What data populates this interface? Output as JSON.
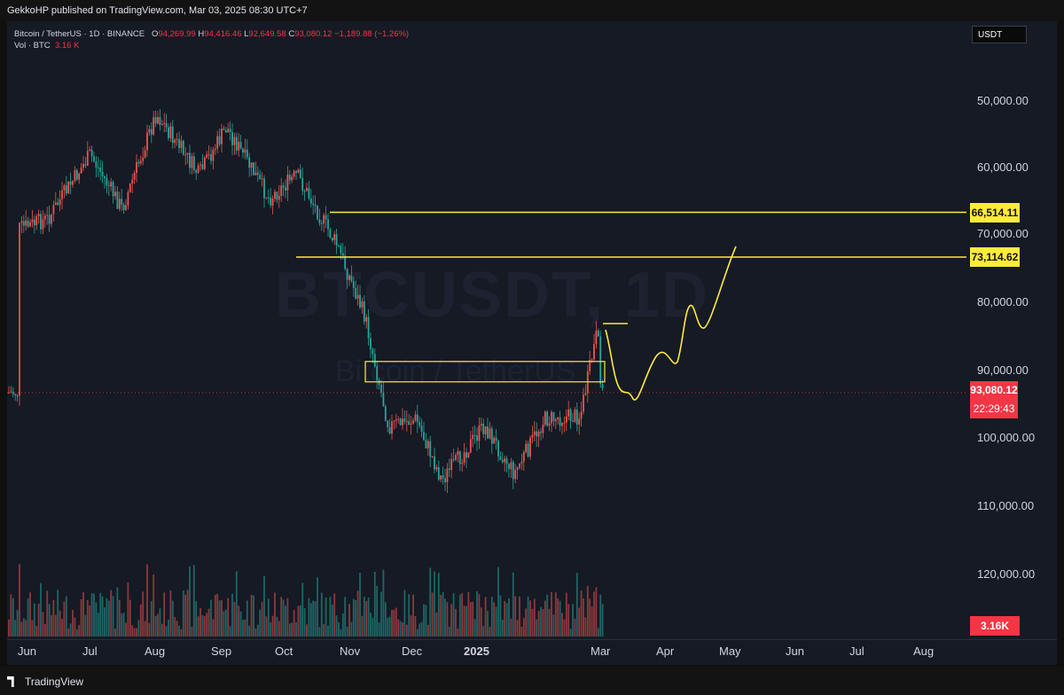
{
  "header": {
    "published": "GekkoHP published on TradingView.com, Mar 03, 2025 08:30 UTC+7"
  },
  "legend": {
    "symbol": "Bitcoin / TetherUS · 1D · BINANCE",
    "o_label": "O",
    "o": "94,269.99",
    "h_label": "H",
    "h": "94,416.46",
    "l_label": "L",
    "l": "92,649.58",
    "c_label": "C",
    "c": "93,080.12",
    "change": "−1,189.88 (−1.26%)",
    "vol_label": "Vol · BTC",
    "vol": "3.16 K"
  },
  "currency": "USDT",
  "watermark": {
    "main": "BTCUSDT, 1D",
    "sub": "Bitcoin / TetherUS"
  },
  "price_axis": [
    "50,000.00",
    "60,000.00",
    "70,000.00",
    "80,000.00",
    "90,000.00",
    "100,000.00",
    "110,000.00",
    "120,000.00"
  ],
  "levels": {
    "upper": "66,514.11",
    "lower": "73,114.62"
  },
  "current": {
    "price": "93,080.12",
    "countdown": "22:29:43"
  },
  "volume_tag": "3.16K",
  "months": [
    "Jun",
    "Jul",
    "Aug",
    "Sep",
    "Oct",
    "Nov",
    "Dec",
    "2025",
    "Mar",
    "Apr",
    "May",
    "Jun",
    "Jul",
    "Aug"
  ],
  "branding": "TradingView",
  "colors": {
    "up": "#26a69a",
    "down": "#ef5350",
    "level": "#ffeb3b",
    "projection": "#ffeb3b",
    "current": "#f23645"
  },
  "chart_data": {
    "type": "candlestick",
    "symbol": "BTCUSDT",
    "timeframe": "1D",
    "y_inverted": true,
    "close_path": [
      [
        "2024-06-01",
        69000
      ],
      [
        "2024-06-15",
        67500
      ],
      [
        "2024-07-05",
        58000
      ],
      [
        "2024-07-20",
        66000
      ],
      [
        "2024-08-05",
        52000
      ],
      [
        "2024-08-25",
        61000
      ],
      [
        "2024-09-07",
        54000
      ],
      [
        "2024-09-27",
        64500
      ],
      [
        "2024-10-10",
        61000
      ],
      [
        "2024-10-29",
        71500
      ],
      [
        "2024-11-11",
        82000
      ],
      [
        "2024-11-22",
        98000
      ],
      [
        "2024-12-05",
        97000
      ],
      [
        "2024-12-17",
        106000
      ],
      [
        "2025-01-06",
        98000
      ],
      [
        "2025-01-20",
        105000
      ],
      [
        "2025-02-03",
        97000
      ],
      [
        "2025-02-20",
        96500
      ],
      [
        "2025-02-28",
        84000
      ],
      [
        "2025-03-02",
        93000
      ],
      [
        "2025-03-03",
        93080.12
      ]
    ],
    "horizontal_levels": [
      66514.11,
      73114.62
    ],
    "zone": [
      88500,
      91500
    ],
    "projection": "sine-shaped path rising from ~93,000 to ~66,514 by early May 2025"
  }
}
